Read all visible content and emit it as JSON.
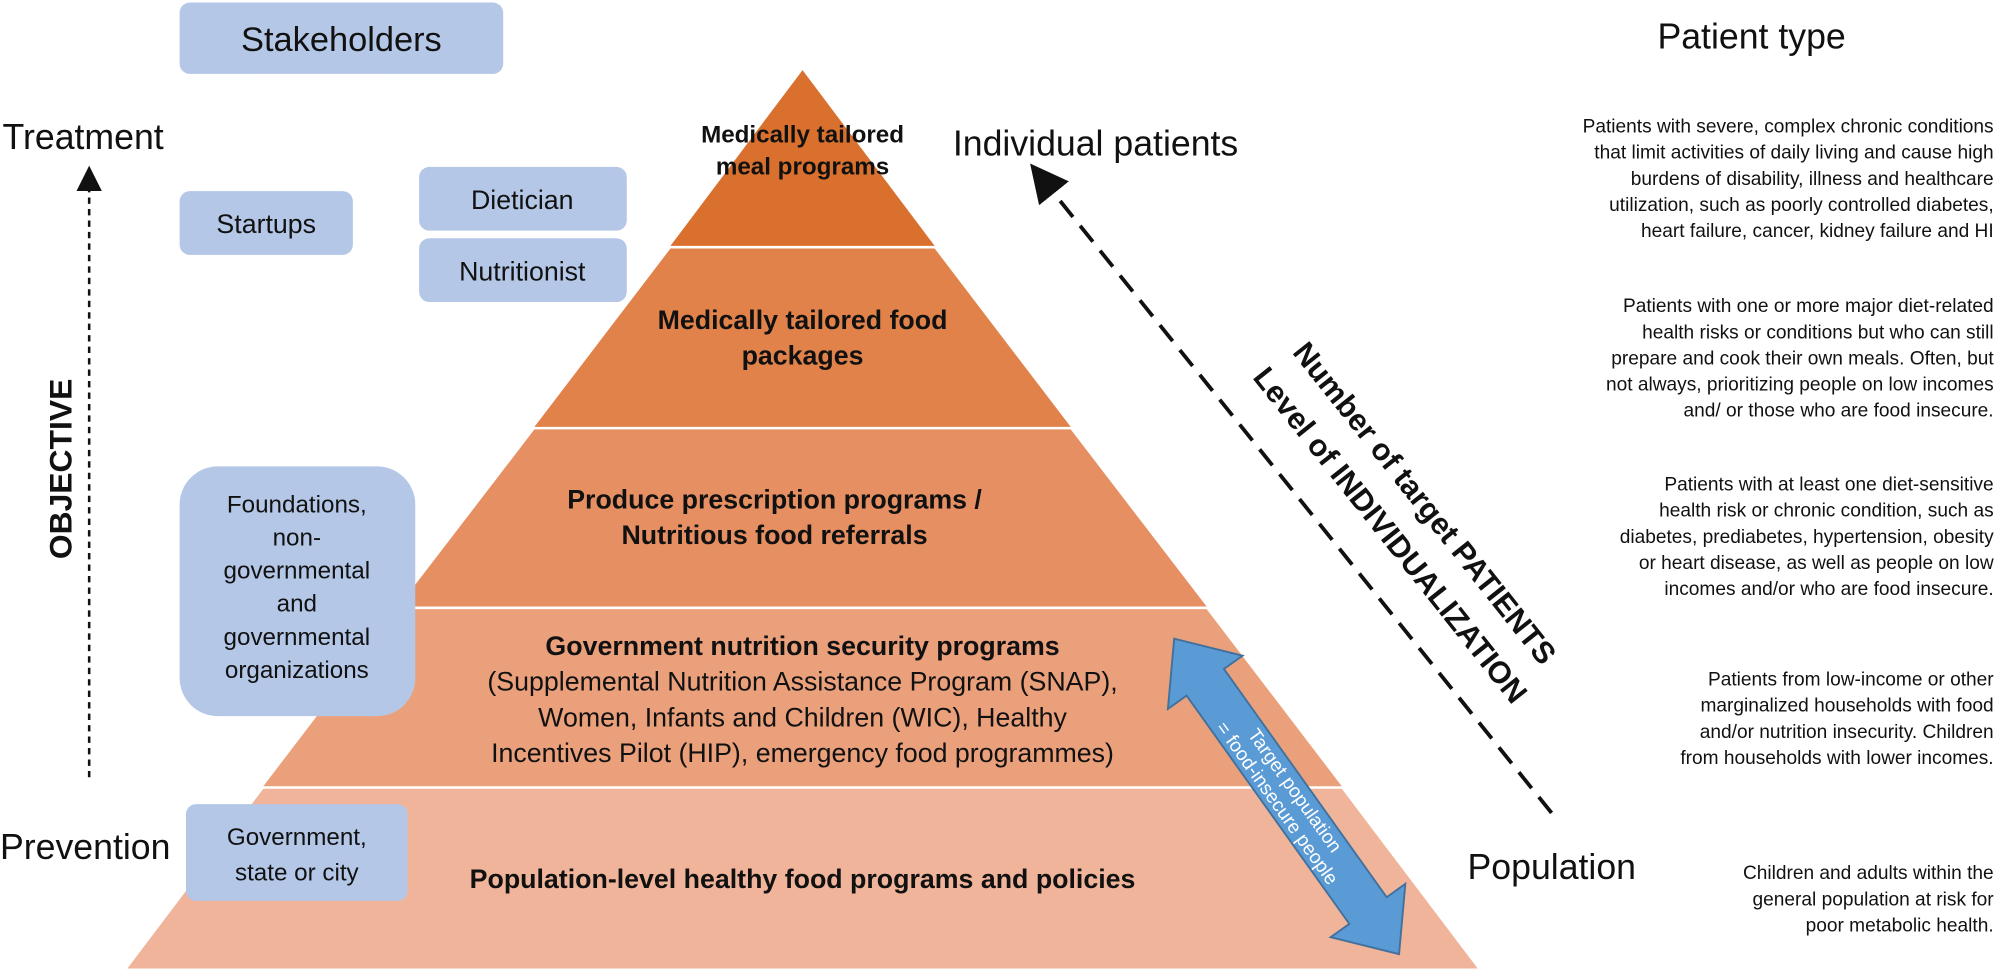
{
  "header": {
    "stakeholders": "Stakeholders",
    "patient_type": "Patient type"
  },
  "axis": {
    "top": "Treatment",
    "bottom": "Prevention",
    "objective": "OBJECTIVE",
    "individual": "Individual patients",
    "population": "Population",
    "diag1": "Number of target PATIENTS",
    "diag2": "Level of INDIVIDUALIZATION"
  },
  "stakeholders": {
    "startups": [
      "Startups"
    ],
    "dietician": [
      "Dietician"
    ],
    "nutritionist": [
      "Nutritionist"
    ],
    "foundations": [
      "Foundations,",
      "non-",
      "governmental",
      "and",
      "governmental",
      "organizations"
    ],
    "government": [
      "Government,",
      "state or city"
    ]
  },
  "pyramid": [
    {
      "bold": [
        "Medically tailored",
        "meal programs"
      ],
      "normal": [],
      "color": "#D9702E"
    },
    {
      "bold": [
        "Medically tailored food",
        "packages"
      ],
      "normal": [],
      "color": "#E0824A"
    },
    {
      "bold": [
        "Produce prescription programs /",
        "Nutritious food referrals"
      ],
      "normal": [],
      "color": "#E58F62"
    },
    {
      "bold": [
        "Government nutrition security programs"
      ],
      "normal": [
        "(Supplemental Nutrition Assistance Program (SNAP),",
        "Women, Infants and Children (WIC), Healthy",
        "Incentives Pilot (HIP), emergency food programmes)"
      ],
      "color": "#EBA07C"
    },
    {
      "bold": [
        "Population-level healthy food programs and policies"
      ],
      "normal": [],
      "color": "#F0B49A"
    }
  ],
  "target_arrow": {
    "lines": [
      "Target population",
      "= food-insecure people"
    ],
    "color": "#5B9BD5"
  },
  "patient_types": [
    [
      "Patients with severe, complex chronic conditions",
      "that limit activities of daily living and cause high",
      "burdens of disability, illness and healthcare",
      "utilization, such as poorly controlled diabetes,",
      "heart failure, cancer, kidney failure and HI"
    ],
    [
      "Patients with one or more major diet-related",
      "health risks or conditions but who can still",
      "prepare and cook their own meals. Often, but",
      "not always, prioritizing people on low incomes",
      "and/ or those who are food insecure."
    ],
    [
      "Patients with at least one diet-sensitive",
      "health risk or chronic condition, such as",
      "diabetes, prediabetes, hypertension, obesity",
      "or heart disease, as well as people on low",
      "incomes and/or who are food insecure."
    ],
    [
      "Patients from low-income or other",
      "marginalized households with food",
      "and/or nutrition insecurity. Children",
      "from households with lower incomes."
    ],
    [
      "Children and adults within the",
      "general population at risk for",
      "poor metabolic health."
    ]
  ]
}
